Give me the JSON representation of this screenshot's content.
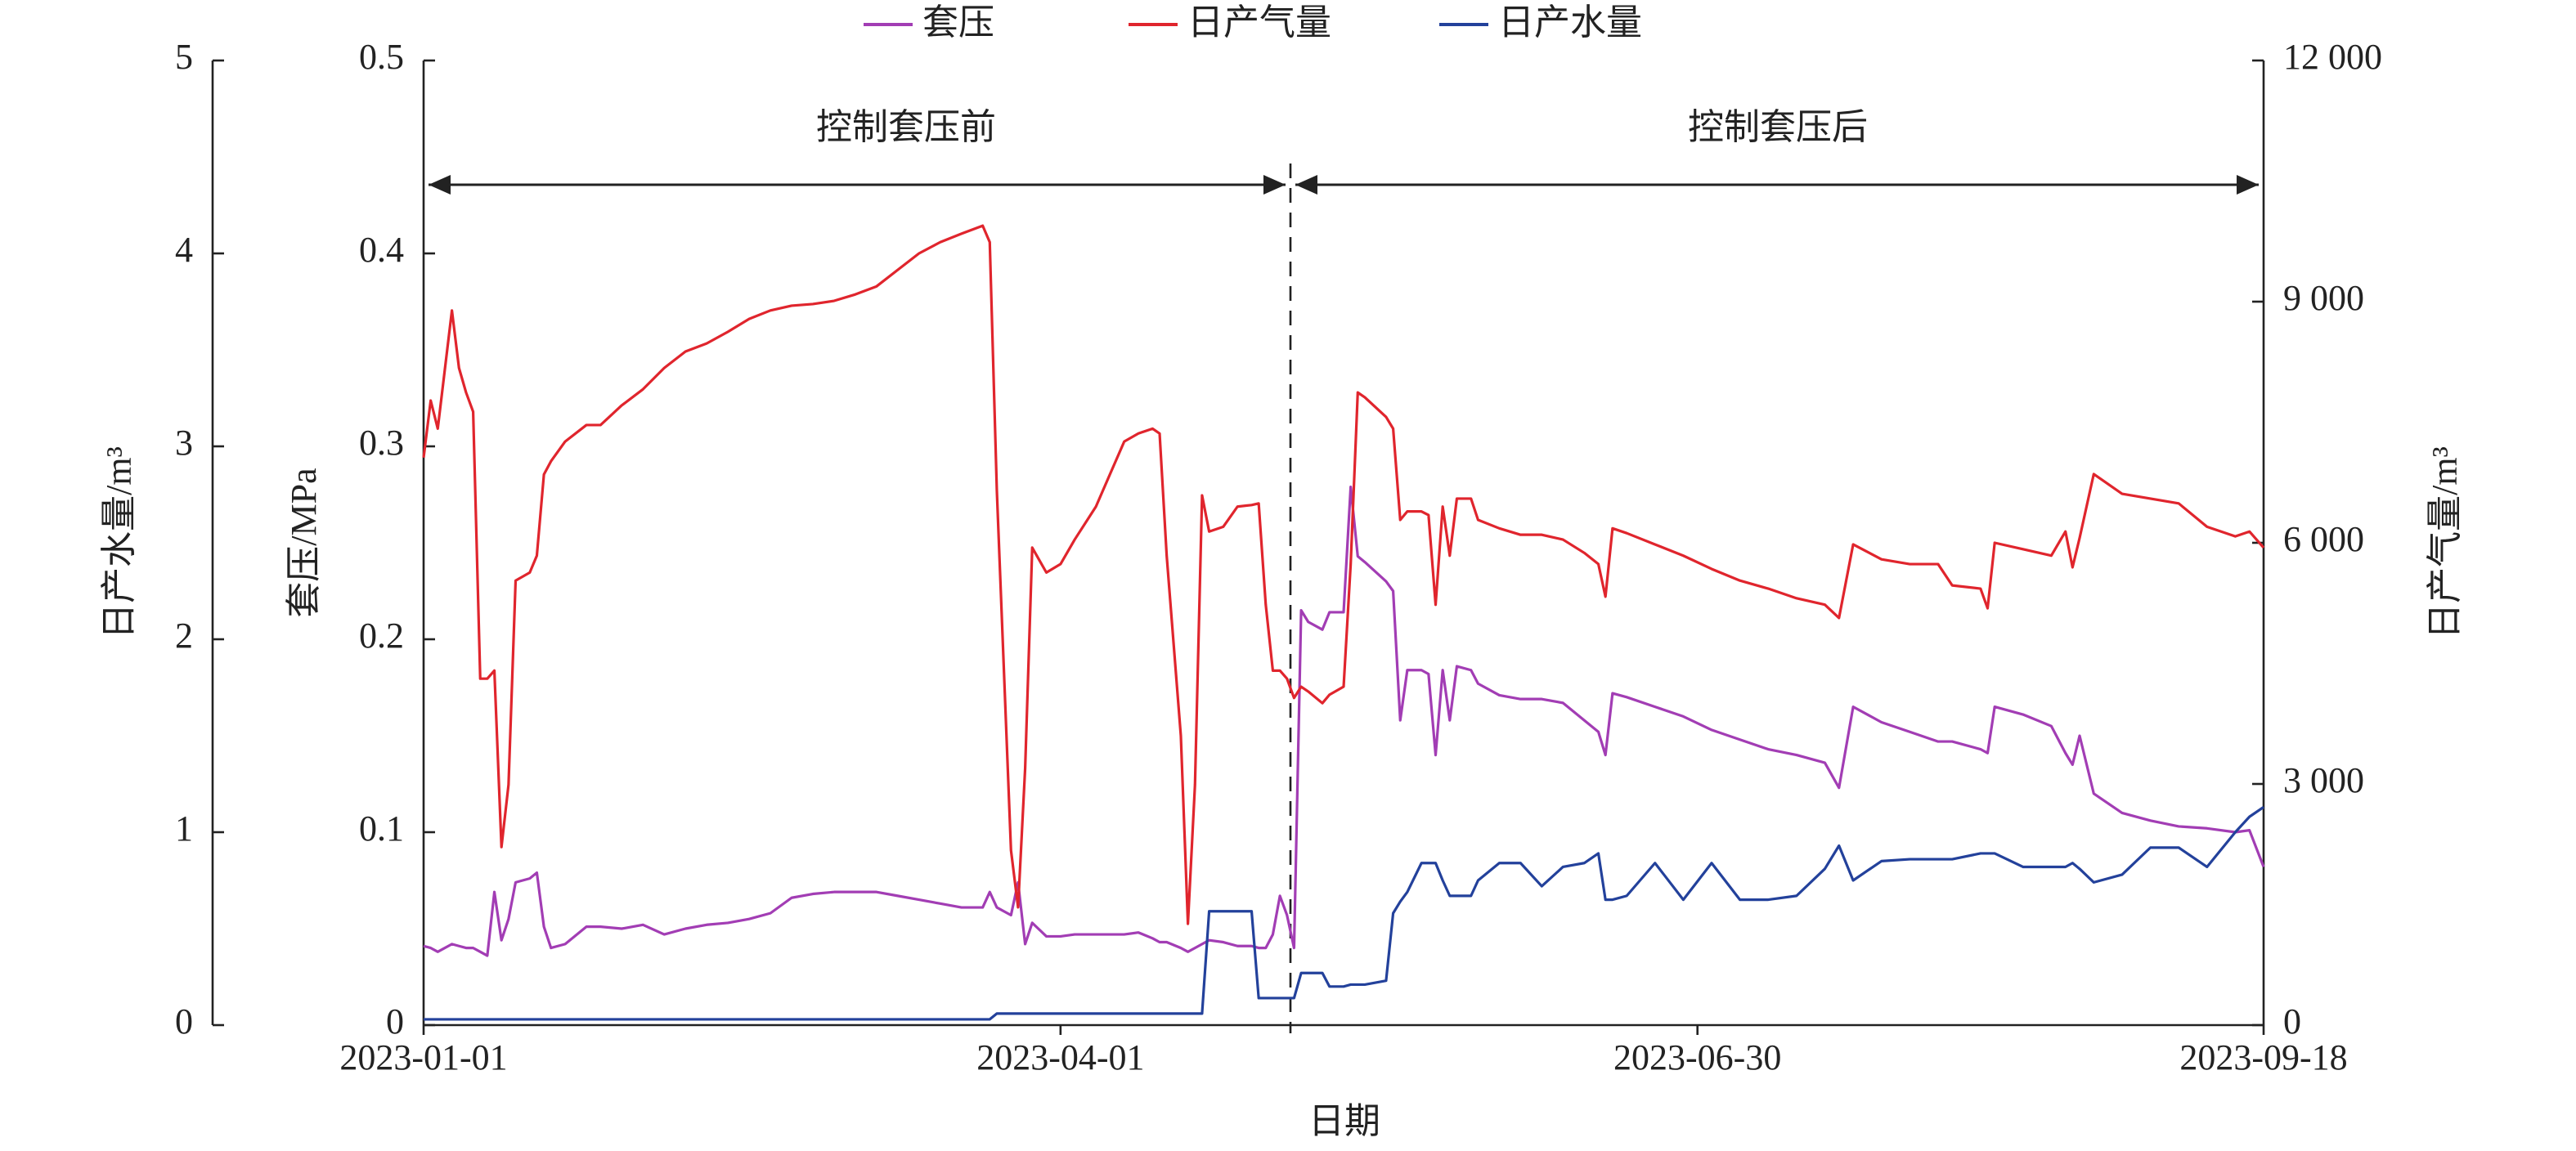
{
  "chart_data": {
    "type": "line",
    "x_label": "日期",
    "y_label": "日产水量/m³",
    "y2_label": "日产气量/m³",
    "y3_label": "套压/MPa",
    "annotations": [
      "控制套压前",
      "控制套压后"
    ],
    "xlim": [
      "2023-01-01",
      "2023-09-18"
    ],
    "xticks": [
      "2023-01-01",
      "2023-04-01",
      "2023-06-30",
      "2023-09-18"
    ],
    "ylim": [
      0,
      5
    ],
    "yticks": [
      0,
      1,
      2,
      3,
      4,
      5
    ],
    "y3lim": [
      0,
      0.5
    ],
    "y3ticks": [
      0,
      0.1,
      0.2,
      0.3,
      0.4,
      0.5
    ],
    "y2lim": [
      0,
      12000
    ],
    "y2ticks": [
      0,
      {
        "value": 3000,
        "label": "3 000"
      },
      {
        "value": 6000,
        "label": "6 000"
      },
      {
        "value": 9000,
        "label": "9 000"
      },
      {
        "value": 12000,
        "label": "12 000"
      }
    ],
    "x": [
      "2023-01-01",
      "2023-01-02",
      "2023-01-03",
      "2023-01-05",
      "2023-01-06",
      "2023-01-07",
      "2023-01-08",
      "2023-01-09",
      "2023-01-10",
      "2023-01-11",
      "2023-01-12",
      "2023-01-13",
      "2023-01-14",
      "2023-01-16",
      "2023-01-17",
      "2023-01-18",
      "2023-01-19",
      "2023-01-21",
      "2023-01-24",
      "2023-01-26",
      "2023-01-29",
      "2023-02-01",
      "2023-02-04",
      "2023-02-07",
      "2023-02-10",
      "2023-02-13",
      "2023-02-16",
      "2023-02-19",
      "2023-02-22",
      "2023-02-25",
      "2023-02-28",
      "2023-03-03",
      "2023-03-06",
      "2023-03-09",
      "2023-03-12",
      "2023-03-15",
      "2023-03-18",
      "2023-03-21",
      "2023-03-22",
      "2023-03-23",
      "2023-03-25",
      "2023-03-26",
      "2023-03-27",
      "2023-03-28",
      "2023-03-30",
      "2023-04-01",
      "2023-04-03",
      "2023-04-06",
      "2023-04-08",
      "2023-04-10",
      "2023-04-12",
      "2023-04-14",
      "2023-04-15",
      "2023-04-16",
      "2023-04-18",
      "2023-04-19",
      "2023-04-20",
      "2023-04-21",
      "2023-04-22",
      "2023-04-24",
      "2023-04-26",
      "2023-04-28",
      "2023-04-29",
      "2023-04-30",
      "2023-05-01",
      "2023-05-02",
      "2023-05-03",
      "2023-05-04",
      "2023-05-05",
      "2023-05-06",
      "2023-05-08",
      "2023-05-09",
      "2023-05-11",
      "2023-05-12",
      "2023-05-13",
      "2023-05-14",
      "2023-05-17",
      "2023-05-18",
      "2023-05-19",
      "2023-05-20",
      "2023-05-22",
      "2023-05-23",
      "2023-05-24",
      "2023-05-25",
      "2023-05-26",
      "2023-05-27",
      "2023-05-29",
      "2023-05-30",
      "2023-06-02",
      "2023-06-05",
      "2023-06-08",
      "2023-06-11",
      "2023-06-14",
      "2023-06-16",
      "2023-06-17",
      "2023-06-18",
      "2023-06-20",
      "2023-06-24",
      "2023-06-28",
      "2023-07-02",
      "2023-07-06",
      "2023-07-10",
      "2023-07-14",
      "2023-07-18",
      "2023-07-20",
      "2023-07-22",
      "2023-07-26",
      "2023-07-30",
      "2023-08-03",
      "2023-08-05",
      "2023-08-09",
      "2023-08-10",
      "2023-08-11",
      "2023-08-15",
      "2023-08-19",
      "2023-08-21",
      "2023-08-22",
      "2023-08-23",
      "2023-08-25",
      "2023-08-29",
      "2023-09-02",
      "2023-09-06",
      "2023-09-10",
      "2023-09-14",
      "2023-09-16",
      "2023-09-18"
    ],
    "series": [
      {
        "name": "套压",
        "color": "#a23db4",
        "axis": "y3",
        "values": [
          0.041,
          0.04,
          0.038,
          0.042,
          0.041,
          0.04,
          0.04,
          0.038,
          0.036,
          0.069,
          0.044,
          0.055,
          0.074,
          0.076,
          0.079,
          0.051,
          0.04,
          0.042,
          0.051,
          0.051,
          0.05,
          0.052,
          0.047,
          0.05,
          0.052,
          0.053,
          0.055,
          0.058,
          0.066,
          0.068,
          0.069,
          0.069,
          0.069,
          0.067,
          0.065,
          0.063,
          0.061,
          0.061,
          0.069,
          0.061,
          0.057,
          0.074,
          0.042,
          0.053,
          0.046,
          0.046,
          0.047,
          0.047,
          0.047,
          0.047,
          0.048,
          0.045,
          0.043,
          0.043,
          0.04,
          0.038,
          0.04,
          0.042,
          0.044,
          0.043,
          0.041,
          0.041,
          0.04,
          0.04,
          0.047,
          0.067,
          0.057,
          0.04,
          0.215,
          0.209,
          0.205,
          0.214,
          0.214,
          0.279,
          0.243,
          0.24,
          0.23,
          0.225,
          0.158,
          0.184,
          0.184,
          0.182,
          0.14,
          0.184,
          0.158,
          0.186,
          0.184,
          0.177,
          0.171,
          0.169,
          0.169,
          0.167,
          0.158,
          0.152,
          0.14,
          0.172,
          0.17,
          0.165,
          0.16,
          0.153,
          0.148,
          0.143,
          0.14,
          0.136,
          0.123,
          0.165,
          0.157,
          0.152,
          0.147,
          0.147,
          0.143,
          0.141,
          0.165,
          0.161,
          0.155,
          0.141,
          0.135,
          0.15,
          0.12,
          0.11,
          0.106,
          0.103,
          0.102,
          0.1,
          0.101,
          0.082
        ]
      },
      {
        "name": "日产气量",
        "color": "#e0252d",
        "axis": "y2",
        "values": [
          7060,
          7770,
          7420,
          8890,
          8175,
          7870,
          7630,
          4310,
          4310,
          4410,
          2215,
          2990,
          5530,
          5630,
          5840,
          6850,
          7015,
          7260,
          7465,
          7465,
          7710,
          7910,
          8175,
          8380,
          8480,
          8625,
          8785,
          8890,
          8950,
          8970,
          9010,
          9090,
          9190,
          9395,
          9600,
          9740,
          9845,
          9945,
          9740,
          6650,
          2175,
          1465,
          3195,
          5940,
          5630,
          5735,
          6040,
          6450,
          6855,
          7260,
          7360,
          7420,
          7360,
          5840,
          3600,
          1260,
          2990,
          6590,
          6140,
          6200,
          6450,
          6470,
          6490,
          5230,
          4410,
          4410,
          4310,
          4070,
          4210,
          4150,
          4005,
          4110,
          4210,
          5735,
          7870,
          7810,
          7565,
          7420,
          6285,
          6390,
          6390,
          6345,
          5230,
          6450,
          5840,
          6550,
          6550,
          6285,
          6180,
          6100,
          6100,
          6040,
          5875,
          5735,
          5330,
          6180,
          6120,
          5980,
          5840,
          5675,
          5530,
          5430,
          5310,
          5230,
          5065,
          5980,
          5795,
          5735,
          5735,
          5470,
          5430,
          5185,
          6000,
          5920,
          5840,
          6140,
          5695,
          6060,
          6855,
          6610,
          6550,
          6490,
          6200,
          6080,
          6140,
          5940
        ]
      },
      {
        "name": "日产水量",
        "color": "#23419b",
        "axis": "y",
        "values": [
          0.03,
          0.03,
          0.03,
          0.03,
          0.03,
          0.03,
          0.03,
          0.03,
          0.03,
          0.03,
          0.03,
          0.03,
          0.03,
          0.03,
          0.03,
          0.03,
          0.03,
          0.03,
          0.03,
          0.03,
          0.03,
          0.03,
          0.03,
          0.03,
          0.03,
          0.03,
          0.03,
          0.03,
          0.03,
          0.03,
          0.03,
          0.03,
          0.03,
          0.03,
          0.03,
          0.03,
          0.03,
          0.03,
          0.03,
          0.06,
          0.06,
          0.06,
          0.06,
          0.06,
          0.06,
          0.06,
          0.06,
          0.06,
          0.06,
          0.06,
          0.06,
          0.06,
          0.06,
          0.06,
          0.06,
          0.06,
          0.06,
          0.06,
          0.59,
          0.59,
          0.59,
          0.59,
          0.14,
          0.14,
          0.14,
          0.14,
          0.14,
          0.14,
          0.27,
          0.27,
          0.27,
          0.2,
          0.2,
          0.21,
          0.21,
          0.21,
          0.23,
          0.58,
          0.64,
          0.69,
          0.84,
          0.84,
          0.84,
          0.75,
          0.67,
          0.67,
          0.67,
          0.75,
          0.84,
          0.84,
          0.72,
          0.82,
          0.84,
          0.89,
          0.65,
          0.65,
          0.67,
          0.84,
          0.65,
          0.84,
          0.65,
          0.65,
          0.67,
          0.81,
          0.93,
          0.75,
          0.85,
          0.86,
          0.86,
          0.86,
          0.89,
          0.89,
          0.89,
          0.82,
          0.82,
          0.82,
          0.84,
          0.81,
          0.74,
          0.78,
          0.92,
          0.92,
          0.82,
          1.0,
          1.08,
          1.13
        ]
      }
    ]
  }
}
